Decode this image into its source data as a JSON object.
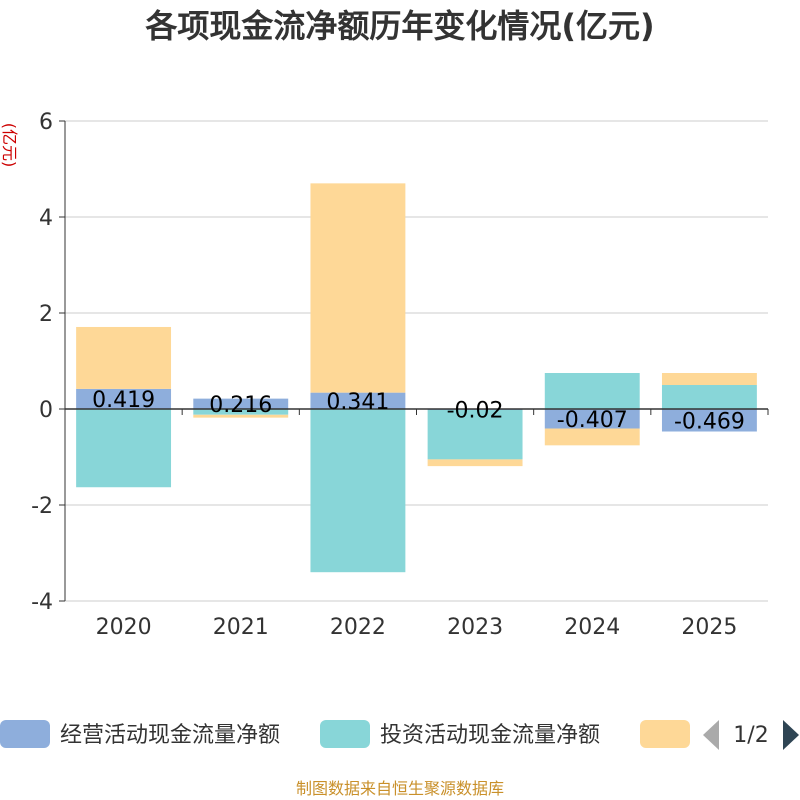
{
  "chart_data": {
    "type": "bar",
    "stacked": true,
    "title": "各项现金流净额历年变化情况(亿元)",
    "ylabel": "(亿元)",
    "xlabel": "",
    "ylim": [
      -4,
      6
    ],
    "yticks": [
      -4,
      -2,
      0,
      2,
      4,
      6
    ],
    "grid": true,
    "categories": [
      "2020",
      "2021",
      "2022",
      "2023",
      "2024",
      "2025"
    ],
    "series": [
      {
        "name": "经营活动现金流量净额",
        "color": "#8eaedc",
        "values": [
          0.419,
          0.216,
          0.341,
          -0.02,
          -0.407,
          -0.469
        ],
        "labels": [
          "0.419",
          "0.216",
          "0.341",
          "-0.02",
          "-0.407",
          "-0.469"
        ]
      },
      {
        "name": "投资活动现金流量净额",
        "color": "#88d6d8",
        "values": [
          -1.63,
          -0.12,
          -3.4,
          -1.03,
          0.75,
          0.5
        ]
      },
      {
        "name": "",
        "color": "#fed897",
        "values": [
          1.29,
          -0.06,
          4.36,
          -0.14,
          -0.35,
          0.25
        ]
      }
    ],
    "legend_position": "bottom",
    "legend_page": "1/2"
  },
  "footer": {
    "source": "制图数据来自恒生聚源数据库"
  },
  "colors": {
    "axis": "#333333",
    "grid": "#cccccc",
    "pager_active": "#2f4554",
    "pager_inactive": "#aaaaaa"
  }
}
